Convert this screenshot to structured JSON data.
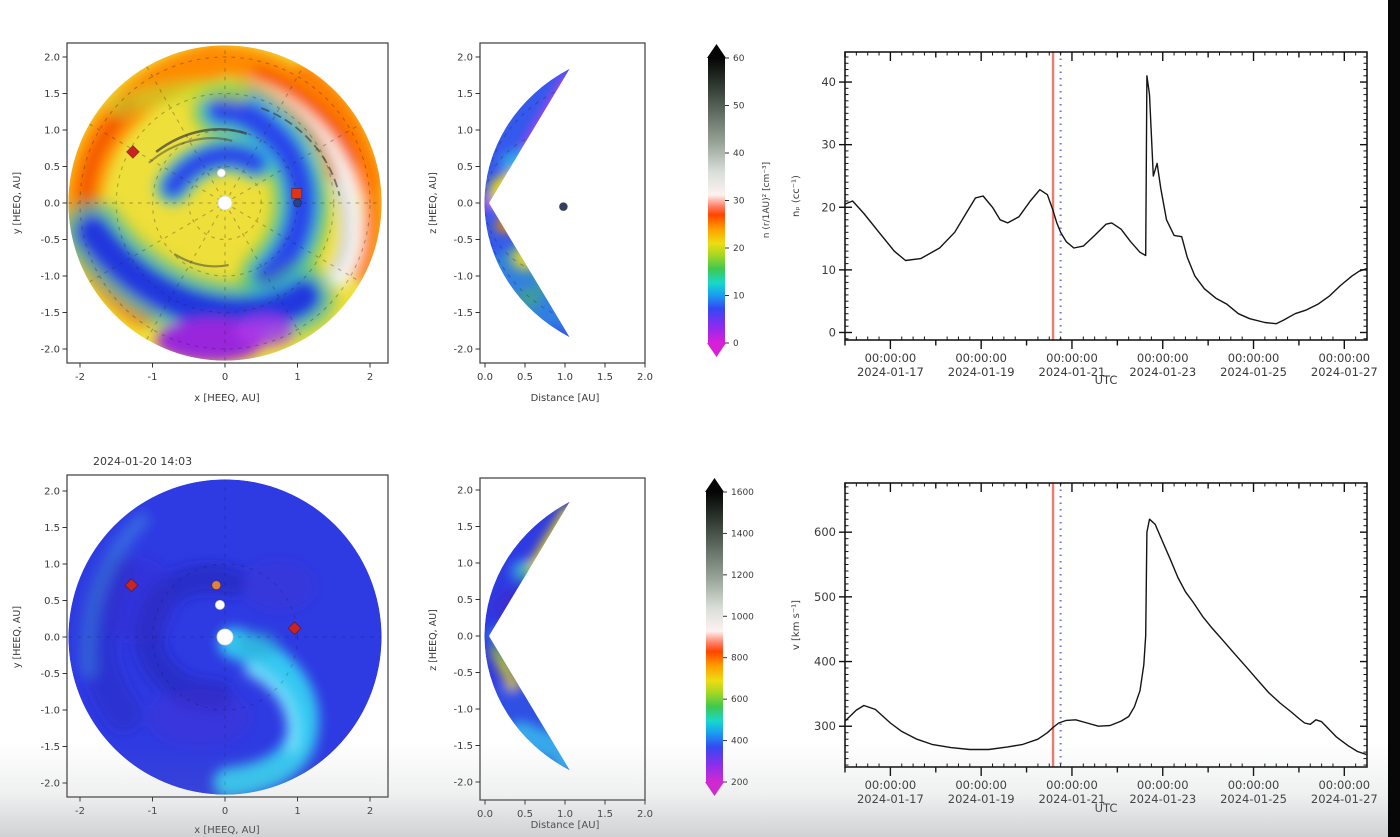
{
  "frame": {
    "timestamp": "2024-01-20 14:03"
  },
  "colors": {
    "curve": "#141414",
    "model_time_line": "#e87468",
    "dotted_marker_line": "#6b77dd",
    "spine": "#1a1a1a"
  },
  "colormap": {
    "description": "enlil-style rainbow to grayscale",
    "stops": [
      [
        "0",
        "#d820d8"
      ],
      [
        "0.06",
        "#8a2bf0"
      ],
      [
        "0.12",
        "#3448f2"
      ],
      [
        "0.17",
        "#19a0f0"
      ],
      [
        "0.21",
        "#17d8cc"
      ],
      [
        "0.26",
        "#3fc84f"
      ],
      [
        "0.31",
        "#a8d822"
      ],
      [
        "0.35",
        "#eedc12"
      ],
      [
        "0.40",
        "#ff9e00"
      ],
      [
        "0.45",
        "#ff4400"
      ],
      [
        "0.48",
        "#ff7f66"
      ],
      [
        "0.52",
        "#fdf2f0"
      ],
      [
        "0.60",
        "#d9ded9"
      ],
      [
        "0.70",
        "#9aa59a"
      ],
      [
        "0.82",
        "#5a665c"
      ],
      [
        "0.93",
        "#232b24"
      ],
      [
        "1",
        "#050505"
      ]
    ]
  },
  "panels": {
    "density_polar": {
      "xlabel": "x [HEEQ, AU]",
      "ylabel": "y [HEEQ, AU]",
      "xticks": [
        "-2",
        "-1",
        "0",
        "1",
        "2"
      ],
      "yticks": [
        "2.0",
        "1.5",
        "1.0",
        "0.5",
        "0.0",
        "-0.5",
        "-1.0",
        "-1.5",
        "-2.0"
      ],
      "markers": [
        {
          "shape": "diamond",
          "color": "#cc2222",
          "x_au": -1.27,
          "y_au": 0.7,
          "size": 9
        },
        {
          "shape": "circle",
          "color": "#ffffff",
          "x_au": -0.05,
          "y_au": 0.41,
          "size": 8
        },
        {
          "shape": "circle",
          "color": "#ffffff",
          "x_au": 0.0,
          "y_au": 0.0,
          "size": 14
        },
        {
          "shape": "square",
          "color": "#e23313",
          "x_au": 0.99,
          "y_au": 0.13,
          "size": 10
        },
        {
          "shape": "circle",
          "color": "#27418f",
          "x_au": 1.0,
          "y_au": 0.0,
          "size": 8
        }
      ]
    },
    "density_meridional": {
      "xlabel": "Distance [AU]",
      "ylabel": "z [HEEQ, AU]",
      "xticks": [
        "0.0",
        "0.5",
        "1.0",
        "1.5",
        "2.0"
      ],
      "yticks": [
        "2.0",
        "1.5",
        "1.0",
        "0.5",
        "0.0",
        "-0.5",
        "-1.0",
        "-1.5",
        "-2.0"
      ],
      "markers": [
        {
          "shape": "circle",
          "color": "#2f3f66",
          "x_au": 0.98,
          "y_au": -0.05,
          "size": 8
        }
      ]
    },
    "velocity_polar": {
      "title": "2024-01-20 14:03",
      "xlabel": "x [HEEQ, AU]",
      "ylabel": "y [HEEQ, AU]",
      "xticks": [
        "-2",
        "-1",
        "0",
        "1",
        "2"
      ],
      "yticks": [
        "2.0",
        "1.5",
        "1.0",
        "0.5",
        "0.0",
        "-0.5",
        "-1.0",
        "-1.5",
        "-2.0"
      ],
      "markers": [
        {
          "shape": "diamond",
          "color": "#cc2222",
          "x_au": -1.29,
          "y_au": 0.71,
          "size": 9
        },
        {
          "shape": "circle",
          "color": "#e0823a",
          "x_au": -0.12,
          "y_au": 0.71,
          "size": 9
        },
        {
          "shape": "circle",
          "color": "#ffffff",
          "x_au": -0.07,
          "y_au": 0.44,
          "size": 9
        },
        {
          "shape": "circle",
          "color": "#ffffff",
          "x_au": 0.0,
          "y_au": 0.0,
          "size": 16
        },
        {
          "shape": "diamond",
          "color": "#cc2222",
          "x_au": 0.96,
          "y_au": 0.12,
          "size": 9
        }
      ]
    },
    "velocity_meridional": {
      "xlabel": "Distance [AU]",
      "ylabel": "z [HEEQ, AU]",
      "xticks": [
        "0.0",
        "0.5",
        "1.0",
        "1.5",
        "2.0"
      ],
      "yticks": [
        "2.0",
        "1.5",
        "1.0",
        "0.5",
        "0.0",
        "-0.5",
        "-1.0",
        "-1.5",
        "-2.0"
      ],
      "markers": []
    },
    "density_colorbar": {
      "label": "n (r/1AU)² [cm⁻³]",
      "ticks": [
        "0",
        "10",
        "20",
        "30",
        "40",
        "50",
        "60"
      ]
    },
    "velocity_colorbar": {
      "label": "",
      "ticks": [
        "200",
        "400",
        "600",
        "800",
        "1000",
        "1200",
        "1400",
        "1600"
      ]
    }
  },
  "chart_data": [
    {
      "id": "density_timeseries",
      "type": "line",
      "xlabel": "UTC",
      "ylabel": "nₚ (cc⁻¹)",
      "x_start": "2024-01-16 00:00",
      "x_end": "2024-01-27 12:00",
      "x_span_hours": 276,
      "ylim": [
        -1.2,
        44.8
      ],
      "yticks": [
        0,
        10,
        20,
        30,
        40
      ],
      "y_minor_step": 1,
      "x_minor_step_hours": 6,
      "x_day_step_hours": 24,
      "xticks": [
        {
          "hours": 24,
          "time": "00:00:00",
          "date": "2024-01-17"
        },
        {
          "hours": 72,
          "time": "00:00:00",
          "date": "2024-01-19"
        },
        {
          "hours": 120,
          "time": "00:00:00",
          "date": "2024-01-21"
        },
        {
          "hours": 168,
          "time": "00:00:00",
          "date": "2024-01-23"
        },
        {
          "hours": 216,
          "time": "00:00:00",
          "date": "2024-01-25"
        },
        {
          "hours": 264,
          "time": "00:00:00",
          "date": "2024-01-27"
        }
      ],
      "vlines": [
        {
          "time": "2024-01-20 14:03",
          "hours": 110,
          "color": "#e87468",
          "style": "solid"
        },
        {
          "time": "2024-01-20 18:00",
          "hours": 114,
          "color": "#6b77dd",
          "style": "dotted"
        }
      ],
      "series": [
        {
          "name": "n_p",
          "color": "#141414",
          "points": [
            [
              0,
              20.5
            ],
            [
              4,
              21.0
            ],
            [
              10,
              19.0
            ],
            [
              18,
              16.0
            ],
            [
              26,
              13.0
            ],
            [
              32,
              11.5
            ],
            [
              40,
              11.8
            ],
            [
              50,
              13.5
            ],
            [
              58,
              16.0
            ],
            [
              64,
              19.0
            ],
            [
              69,
              21.5
            ],
            [
              73,
              21.8
            ],
            [
              78,
              20.0
            ],
            [
              82,
              18.0
            ],
            [
              86,
              17.5
            ],
            [
              92,
              18.5
            ],
            [
              98,
              21.0
            ],
            [
              103,
              22.8
            ],
            [
              107,
              22.0
            ],
            [
              110,
              19.5
            ],
            [
              112,
              17.5
            ],
            [
              114,
              16.0
            ],
            [
              117,
              14.5
            ],
            [
              121,
              13.5
            ],
            [
              126,
              13.8
            ],
            [
              132,
              15.5
            ],
            [
              138,
              17.3
            ],
            [
              141,
              17.5
            ],
            [
              146,
              16.5
            ],
            [
              151,
              14.5
            ],
            [
              156,
              12.8
            ],
            [
              159,
              12.3
            ],
            [
              159.6,
              41.0
            ],
            [
              161,
              38.0
            ],
            [
              163,
              25.0
            ],
            [
              165,
              27.0
            ],
            [
              167,
              23.0
            ],
            [
              170,
              18.0
            ],
            [
              174,
              15.5
            ],
            [
              178,
              15.3
            ],
            [
              181,
              12.0
            ],
            [
              185,
              9.0
            ],
            [
              190,
              7.0
            ],
            [
              196,
              5.5
            ],
            [
              202,
              4.5
            ],
            [
              208,
              3.0
            ],
            [
              214,
              2.2
            ],
            [
              222,
              1.6
            ],
            [
              228,
              1.4
            ],
            [
              232,
              2.0
            ],
            [
              238,
              3.0
            ],
            [
              244,
              3.6
            ],
            [
              250,
              4.5
            ],
            [
              256,
              5.8
            ],
            [
              262,
              7.5
            ],
            [
              268,
              9.0
            ],
            [
              272,
              9.8
            ],
            [
              276,
              10.2
            ]
          ]
        }
      ]
    },
    {
      "id": "velocity_timeseries",
      "type": "line",
      "xlabel": "UTC",
      "ylabel": "v [km s⁻¹]",
      "x_start": "2024-01-16 00:00",
      "x_end": "2024-01-27 12:00",
      "x_span_hours": 276,
      "ylim": [
        237,
        676
      ],
      "yticks": [
        300,
        400,
        500,
        600
      ],
      "y_minor_step": 10,
      "x_minor_step_hours": 6,
      "x_day_step_hours": 24,
      "xticks": [
        {
          "hours": 24,
          "time": "00:00:00",
          "date": "2024-01-17"
        },
        {
          "hours": 72,
          "time": "00:00:00",
          "date": "2024-01-19"
        },
        {
          "hours": 120,
          "time": "00:00:00",
          "date": "2024-01-21"
        },
        {
          "hours": 168,
          "time": "00:00:00",
          "date": "2024-01-23"
        },
        {
          "hours": 216,
          "time": "00:00:00",
          "date": "2024-01-25"
        },
        {
          "hours": 264,
          "time": "00:00:00",
          "date": "2024-01-27"
        }
      ],
      "vlines": [
        {
          "time": "2024-01-20 14:03",
          "hours": 110,
          "color": "#e87468",
          "style": "solid"
        },
        {
          "time": "2024-01-20 18:00",
          "hours": 114,
          "color": "#6b77dd",
          "style": "dotted"
        }
      ],
      "series": [
        {
          "name": "v",
          "color": "#141414",
          "points": [
            [
              0,
              308
            ],
            [
              6,
              325
            ],
            [
              10,
              332
            ],
            [
              16,
              326
            ],
            [
              24,
              305
            ],
            [
              30,
              292
            ],
            [
              38,
              280
            ],
            [
              46,
              272
            ],
            [
              56,
              267
            ],
            [
              66,
              264
            ],
            [
              76,
              264
            ],
            [
              86,
              268
            ],
            [
              94,
              272
            ],
            [
              102,
              280
            ],
            [
              107,
              290
            ],
            [
              110,
              298
            ],
            [
              113,
              305
            ],
            [
              117,
              309
            ],
            [
              122,
              310
            ],
            [
              128,
              305
            ],
            [
              134,
              300
            ],
            [
              140,
              301
            ],
            [
              146,
              308
            ],
            [
              150,
              315
            ],
            [
              153,
              330
            ],
            [
              156,
              355
            ],
            [
              158,
              395
            ],
            [
              159,
              440
            ],
            [
              159.6,
              600
            ],
            [
              161,
              620
            ],
            [
              164,
              612
            ],
            [
              168,
              585
            ],
            [
              172,
              558
            ],
            [
              176,
              530
            ],
            [
              180,
              508
            ],
            [
              184,
              492
            ],
            [
              189,
              470
            ],
            [
              194,
              452
            ],
            [
              200,
              432
            ],
            [
              206,
              412
            ],
            [
              212,
              392
            ],
            [
              218,
              372
            ],
            [
              224,
              352
            ],
            [
              230,
              336
            ],
            [
              236,
              322
            ],
            [
              240,
              312
            ],
            [
              243,
              305
            ],
            [
              246,
              303
            ],
            [
              249,
              310
            ],
            [
              252,
              307
            ],
            [
              256,
              295
            ],
            [
              260,
              283
            ],
            [
              266,
              270
            ],
            [
              271,
              261
            ],
            [
              276,
              256
            ]
          ]
        }
      ]
    }
  ]
}
